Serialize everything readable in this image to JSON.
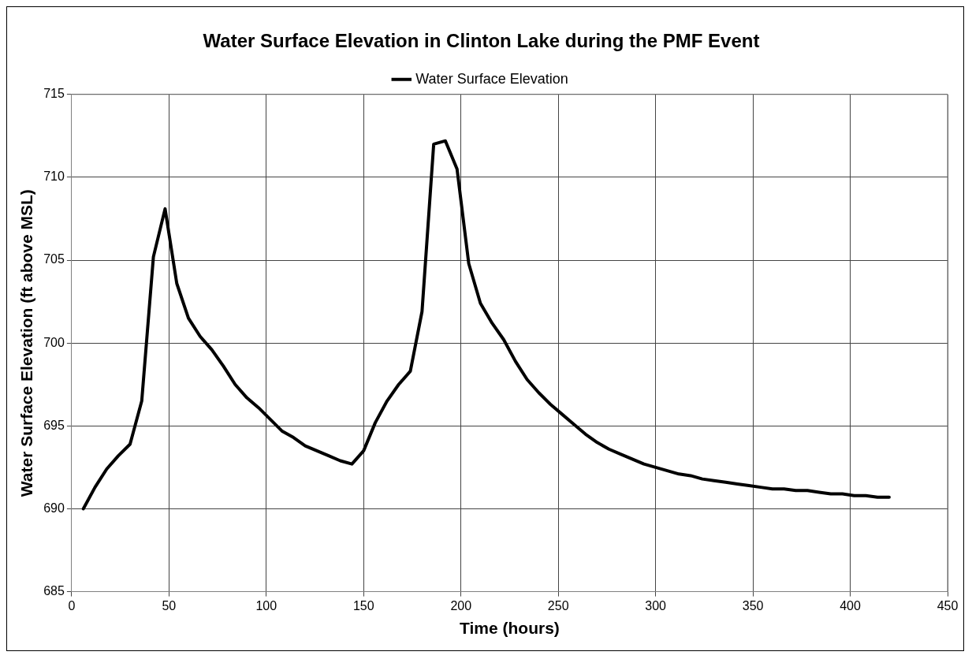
{
  "chart_data": {
    "type": "line",
    "title": "Water Surface Elevation in Clinton Lake during the PMF Event",
    "xlabel": "Time (hours)",
    "ylabel": "Water Surface Elevation (ft above MSL)",
    "x": [
      6,
      12,
      18,
      24,
      30,
      36,
      42,
      48,
      54,
      60,
      66,
      72,
      78,
      84,
      90,
      96,
      102,
      108,
      114,
      120,
      126,
      132,
      138,
      144,
      150,
      156,
      162,
      168,
      174,
      180,
      186,
      192,
      198,
      204,
      210,
      216,
      222,
      228,
      234,
      240,
      246,
      252,
      258,
      264,
      270,
      276,
      282,
      288,
      294,
      300,
      306,
      312,
      318,
      324,
      330,
      336,
      342,
      348,
      354,
      360,
      366,
      372,
      378,
      384,
      390,
      396,
      402,
      408,
      414,
      420
    ],
    "series": [
      {
        "name": "Water Surface Elevation",
        "color": "#000000",
        "values": [
          690.0,
          691.3,
          692.4,
          693.2,
          693.9,
          696.5,
          705.2,
          708.1,
          703.6,
          701.5,
          700.4,
          699.6,
          698.6,
          697.5,
          696.7,
          696.1,
          695.4,
          694.7,
          694.3,
          693.8,
          693.5,
          693.2,
          692.9,
          692.7,
          693.5,
          695.2,
          696.5,
          697.5,
          698.3,
          701.9,
          712.0,
          712.2,
          710.5,
          704.8,
          702.4,
          701.2,
          700.2,
          698.9,
          697.8,
          697.0,
          696.3,
          695.7,
          695.1,
          694.5,
          694.0,
          693.6,
          693.3,
          693.0,
          692.7,
          692.5,
          692.3,
          692.1,
          692.0,
          691.8,
          691.7,
          691.6,
          691.5,
          691.4,
          691.3,
          691.2,
          691.2,
          691.1,
          691.1,
          691.0,
          690.9,
          690.9,
          690.8,
          690.8,
          690.7,
          690.7
        ]
      }
    ],
    "xlim": [
      0,
      450
    ],
    "xticks": [
      0,
      50,
      100,
      150,
      200,
      250,
      300,
      350,
      400,
      450
    ],
    "ylim": [
      685,
      715
    ],
    "yticks": [
      685,
      690,
      695,
      700,
      705,
      710,
      715
    ],
    "grid": true,
    "legend": "top",
    "marker": "none",
    "line_style": "solid"
  }
}
